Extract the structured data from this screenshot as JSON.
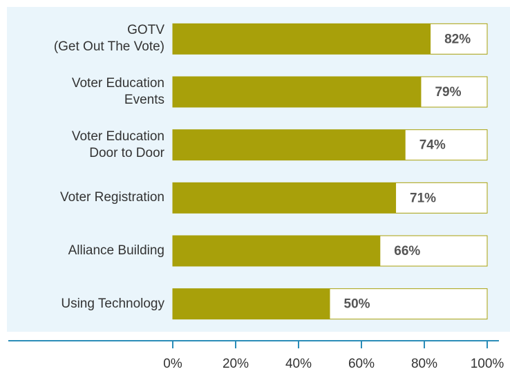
{
  "chart_data": {
    "type": "hbar",
    "categories": [
      "GOTV\n(Get Out The Vote)",
      "Voter Education\nEvents",
      "Voter Education\nDoor to Door",
      "Voter Registration",
      "Alliance Building",
      "Using Technology"
    ],
    "values": [
      82,
      79,
      74,
      71,
      66,
      50
    ],
    "value_labels": [
      "82%",
      "79%",
      "74%",
      "71%",
      "66%",
      "50%"
    ],
    "color": "#a8a00a",
    "xlim": [
      0,
      100
    ],
    "xticks": [
      {
        "value": 0,
        "label": "0%"
      },
      {
        "value": 20,
        "label": "20%"
      },
      {
        "value": 40,
        "label": "40%"
      },
      {
        "value": 60,
        "label": "60%"
      },
      {
        "value": 80,
        "label": "80%"
      },
      {
        "value": 100,
        "label": "100%"
      }
    ]
  }
}
